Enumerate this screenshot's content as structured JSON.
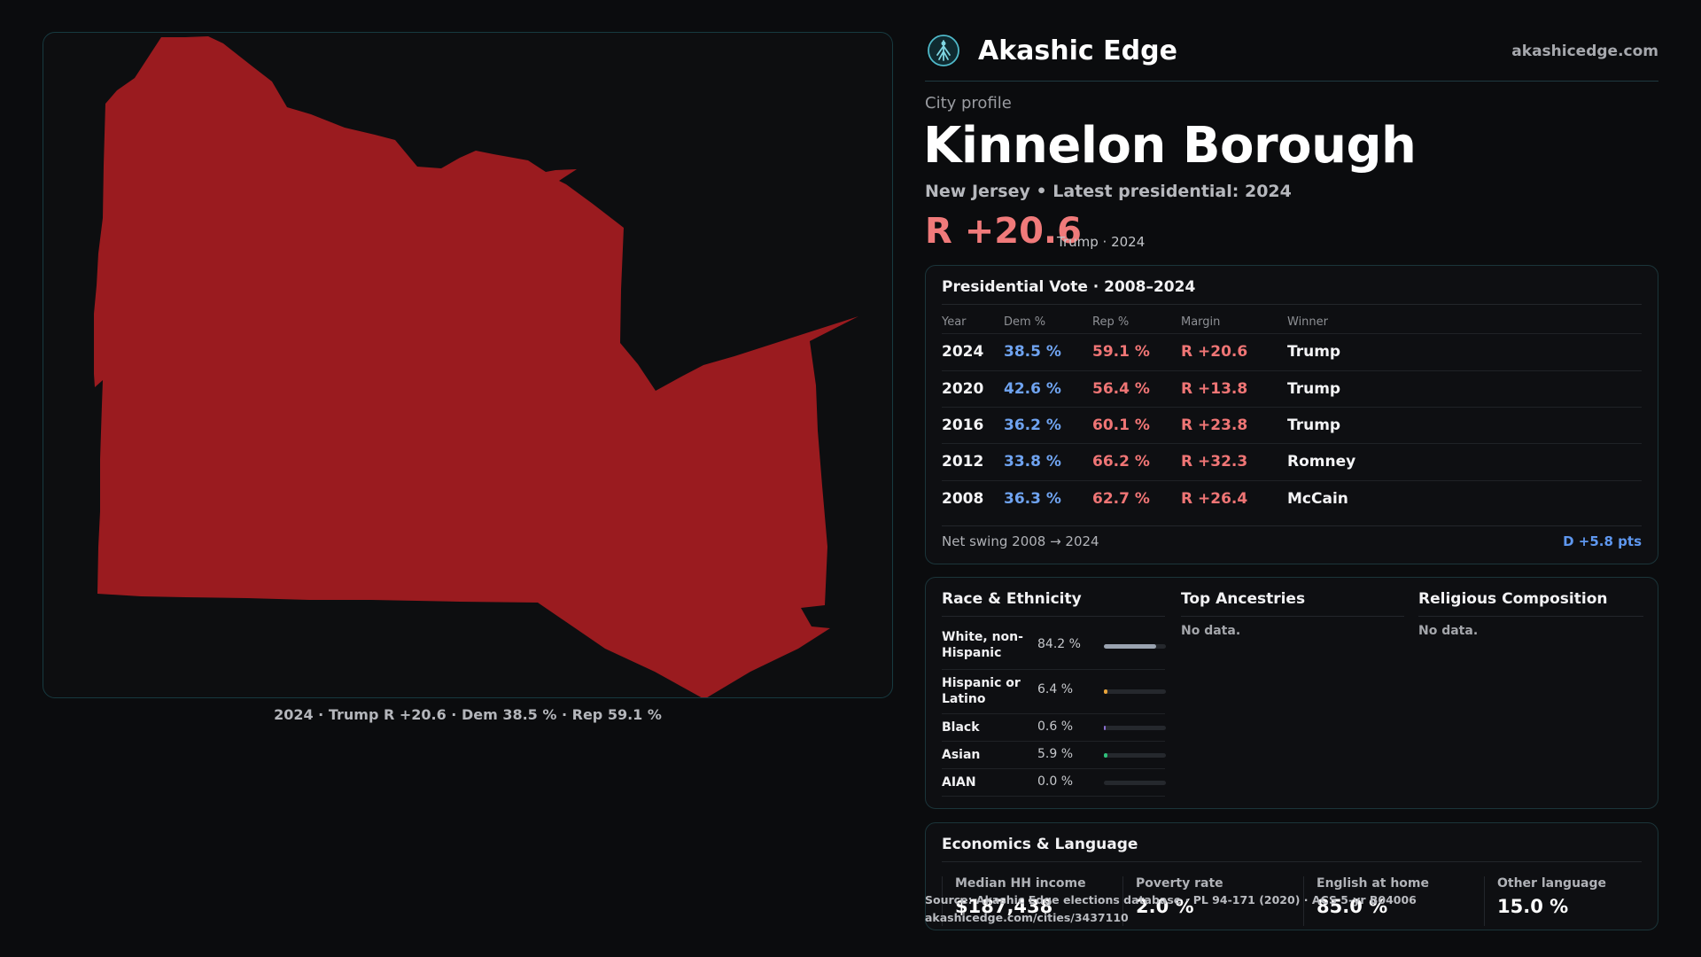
{
  "map": {
    "fill_color": "#9a1b1f",
    "caption": "2024 · Trump R +20.6 · Dem 38.5 % · Rep 59.1 %"
  },
  "header": {
    "brand": "Akashic Edge",
    "site": "akashicedge.com",
    "logo_icon": "tree-logo-icon"
  },
  "profile": {
    "kicker": "City profile",
    "city": "Kinnelon Borough",
    "subtitle": "New Jersey • Latest presidential: 2024",
    "margin": "R +20.6",
    "margin_note": "Trump · 2024"
  },
  "presidential": {
    "title": "Presidential Vote · 2008–2024",
    "columns": [
      "Year",
      "Dem %",
      "Rep %",
      "Margin",
      "Winner"
    ],
    "rows": [
      {
        "year": "2024",
        "dem": "38.5 %",
        "rep": "59.1 %",
        "margin": "R +20.6",
        "winner": "Trump"
      },
      {
        "year": "2020",
        "dem": "42.6 %",
        "rep": "56.4 %",
        "margin": "R +13.8",
        "winner": "Trump"
      },
      {
        "year": "2016",
        "dem": "36.2 %",
        "rep": "60.1 %",
        "margin": "R +23.8",
        "winner": "Trump"
      },
      {
        "year": "2012",
        "dem": "33.8 %",
        "rep": "66.2 %",
        "margin": "R +32.3",
        "winner": "Romney"
      },
      {
        "year": "2008",
        "dem": "36.3 %",
        "rep": "62.7 %",
        "margin": "R +26.4",
        "winner": "McCain"
      }
    ],
    "swing_label": "Net swing 2008 → 2024",
    "swing_value": "D +5.8 pts"
  },
  "race": {
    "title": "Race & Ethnicity",
    "rows": [
      {
        "label": "White, non-Hispanic",
        "value": "84.2 %",
        "share": 0.842,
        "color": "#9aa3b0"
      },
      {
        "label": "Hispanic or Latino",
        "value": "6.4 %",
        "share": 0.064,
        "color": "#e8a33a"
      },
      {
        "label": "Black",
        "value": "0.6 %",
        "share": 0.006,
        "color": "#8a6fd0"
      },
      {
        "label": "Asian",
        "value": "5.9 %",
        "share": 0.059,
        "color": "#2fbf7a"
      },
      {
        "label": "AIAN",
        "value": "0.0 %",
        "share": 0.0,
        "color": "#cc5a5a"
      }
    ]
  },
  "ancestries": {
    "title": "Top Ancestries",
    "empty": "No data."
  },
  "religion": {
    "title": "Religious Composition",
    "empty": "No data."
  },
  "economics": {
    "title": "Economics & Language",
    "stats": [
      {
        "label": "Median HH income",
        "value": "$187,438"
      },
      {
        "label": "Poverty rate",
        "value": "2.0 %"
      },
      {
        "label": "English at home",
        "value": "85.0 %"
      },
      {
        "label": "Other language",
        "value": "15.0 %"
      }
    ]
  },
  "source": {
    "line1": "Source: Akashic Edge elections database · PL 94-171 (2020) · ACS 5-yr B04006",
    "line2": "akashicedge.com/cities/3437110"
  }
}
